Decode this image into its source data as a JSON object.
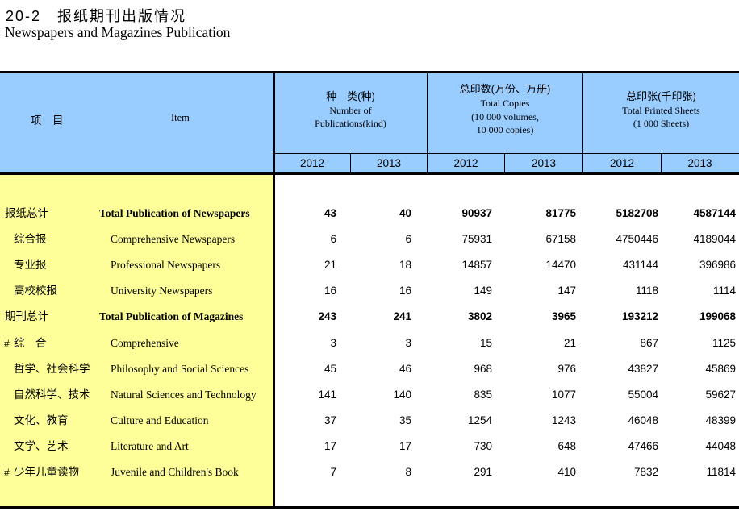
{
  "title": {
    "cn": "20-2　报纸期刊出版情况",
    "en": "Newspapers and Magazines Publication"
  },
  "colors": {
    "header_bg": "#99CCFF",
    "item_column_bg": "#FFFF99",
    "border": "#000000"
  },
  "header": {
    "item_cn": "项　目",
    "item_en": "Item",
    "groups": [
      {
        "lines": [
          "种　类(种)",
          "Number of",
          "Publications(kind)"
        ]
      },
      {
        "lines": [
          "总印数(万份、万册)",
          "Total Copies",
          "(10 000 volumes,",
          "10 000 copies)"
        ]
      },
      {
        "lines": [
          "总印张(千印张)",
          "Total Printed Sheets",
          "(1 000 Sheets)"
        ]
      }
    ],
    "years": [
      "2012",
      "2013",
      "2012",
      "2013",
      "2012",
      "2013"
    ]
  },
  "rows": [
    {
      "cn": "报纸总计",
      "en": "Total Publication of Newspapers",
      "bold": true,
      "hash": false,
      "values": [
        "43",
        "40",
        "90937",
        "81775",
        "5182708",
        "4587144"
      ]
    },
    {
      "cn": "综合报",
      "en": "Comprehensive Newspapers",
      "bold": false,
      "hash": false,
      "values": [
        "6",
        "6",
        "75931",
        "67158",
        "4750446",
        "4189044"
      ]
    },
    {
      "cn": "专业报",
      "en": "Professional Newspapers",
      "bold": false,
      "hash": false,
      "values": [
        "21",
        "18",
        "14857",
        "14470",
        "431144",
        "396986"
      ]
    },
    {
      "cn": "高校校报",
      "en": "University Newspapers",
      "bold": false,
      "hash": false,
      "values": [
        "16",
        "16",
        "149",
        "147",
        "1118",
        "1114"
      ]
    },
    {
      "cn": "期刊总计",
      "en": "Total Publication of Magazines",
      "bold": true,
      "hash": false,
      "values": [
        "243",
        "241",
        "3802",
        "3965",
        "193212",
        "199068"
      ]
    },
    {
      "cn": "综　合",
      "en": "Comprehensive",
      "bold": false,
      "hash": true,
      "values": [
        "3",
        "3",
        "15",
        "21",
        "867",
        "1125"
      ]
    },
    {
      "cn": "哲学、社会科学",
      "en": "Philosophy and Social Sciences",
      "bold": false,
      "hash": false,
      "values": [
        "45",
        "46",
        "968",
        "976",
        "43827",
        "45869"
      ]
    },
    {
      "cn": "自然科学、技术",
      "en": "Natural Sciences and Technology",
      "bold": false,
      "hash": false,
      "values": [
        "141",
        "140",
        "835",
        "1077",
        "55004",
        "59627"
      ]
    },
    {
      "cn": "文化、教育",
      "en": "Culture and Education",
      "bold": false,
      "hash": false,
      "values": [
        "37",
        "35",
        "1254",
        "1243",
        "46048",
        "48399"
      ]
    },
    {
      "cn": "文学、艺术",
      "en": "Literature and Art",
      "bold": false,
      "hash": false,
      "values": [
        "17",
        "17",
        "730",
        "648",
        "47466",
        "44048"
      ]
    },
    {
      "cn": "少年儿童读物",
      "en": "Juvenile and Children's Book",
      "bold": false,
      "hash": true,
      "values": [
        "7",
        "8",
        "291",
        "410",
        "7832",
        "11814"
      ]
    }
  ]
}
